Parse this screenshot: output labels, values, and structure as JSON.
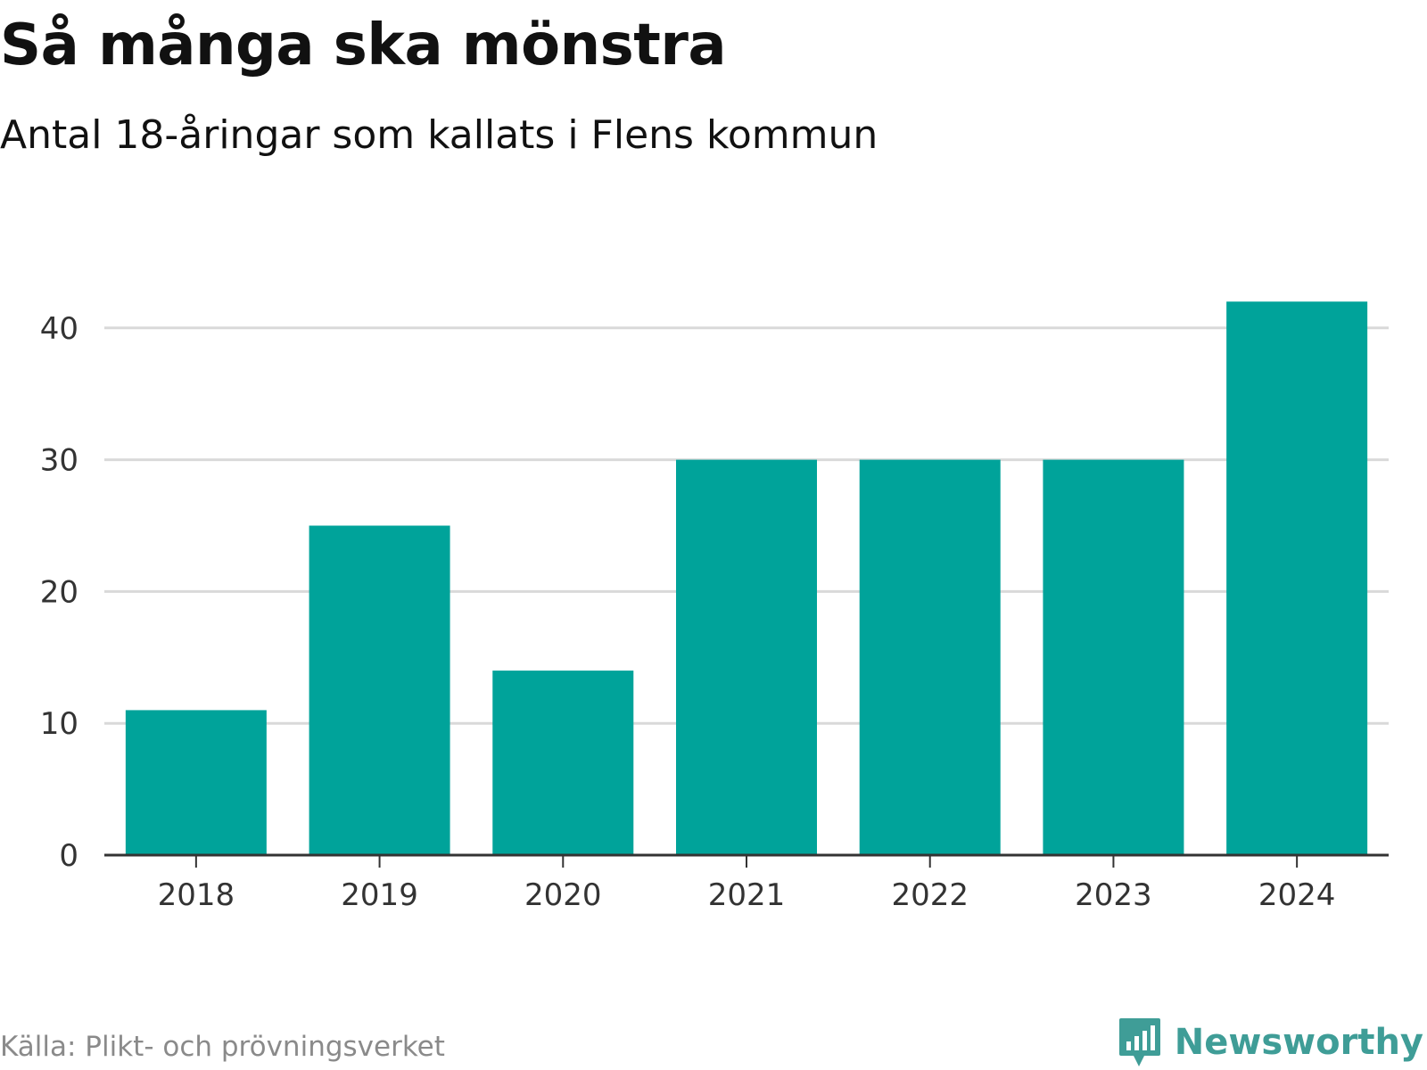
{
  "title": "Så många ska mönstra",
  "subtitle": "Antal 18-åringar som kallats i Flens kommun",
  "source": "Källa: Plikt- och prövningsverket",
  "brand": {
    "name": "Newsworthy",
    "icon": "newsworthy-logo-icon",
    "color": "#3f9d97"
  },
  "colors": {
    "bar": "#00a39a",
    "grid": "#d9d9d9",
    "axis": "#333333"
  },
  "chart_data": {
    "type": "bar",
    "categories": [
      "2018",
      "2019",
      "2020",
      "2021",
      "2022",
      "2023",
      "2024"
    ],
    "values": [
      11,
      25,
      14,
      30,
      30,
      30,
      42
    ],
    "title": "Så många ska mönstra",
    "subtitle": "Antal 18-åringar som kallats i Flens kommun",
    "xlabel": "",
    "ylabel": "",
    "ylim": [
      0,
      45
    ],
    "yticks": [
      0,
      10,
      20,
      30,
      40
    ],
    "grid": true
  }
}
